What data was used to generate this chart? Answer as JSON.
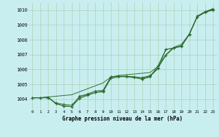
{
  "xlabel": "Graphe pression niveau de la mer (hPa)",
  "hours": [
    0,
    1,
    2,
    3,
    4,
    5,
    6,
    7,
    8,
    9,
    10,
    11,
    12,
    13,
    14,
    15,
    16,
    17,
    18,
    19,
    20,
    21,
    22,
    23
  ],
  "line1": [
    1004.1,
    1004.1,
    1004.1,
    1003.75,
    1003.65,
    1003.6,
    1004.15,
    1004.3,
    1004.45,
    1004.5,
    1005.4,
    1005.5,
    1005.55,
    1005.5,
    1005.45,
    1005.6,
    1006.1,
    1006.95,
    1007.45,
    1007.6,
    1008.35,
    1009.55,
    1009.85,
    1010.05
  ],
  "line2": [
    1004.1,
    1004.1,
    1004.1,
    1003.7,
    1003.55,
    1003.5,
    1004.05,
    1004.25,
    1004.45,
    1004.55,
    1005.5,
    1005.55,
    1005.55,
    1005.5,
    1005.4,
    1005.55,
    1006.05,
    1007.35,
    1007.45,
    1007.6,
    1008.4,
    1009.6,
    1009.9,
    1010.1
  ],
  "line3": [
    1004.1,
    1004.1,
    1004.15,
    1003.7,
    1003.55,
    1003.5,
    1004.2,
    1004.35,
    1004.55,
    1004.6,
    1005.5,
    1005.55,
    1005.5,
    1005.45,
    1005.35,
    1005.5,
    1006.25,
    1007.35,
    1007.45,
    1007.55,
    1008.4,
    1009.55,
    1009.85,
    1010.0
  ],
  "line_straight": [
    1004.1,
    1004.1,
    1004.15,
    1004.2,
    1004.25,
    1004.3,
    1004.5,
    1004.7,
    1004.9,
    1005.1,
    1005.5,
    1005.6,
    1005.65,
    1005.7,
    1005.75,
    1005.8,
    1006.2,
    1007.0,
    1007.5,
    1007.7,
    1008.4,
    1009.55,
    1009.9,
    1010.05
  ],
  "ylim": [
    1003.3,
    1010.5
  ],
  "yticks": [
    1004,
    1005,
    1006,
    1007,
    1008,
    1009,
    1010
  ],
  "bg_color": "#c8eef0",
  "line_color": "#2d6a2d",
  "grid_color": "#b0ccb0"
}
